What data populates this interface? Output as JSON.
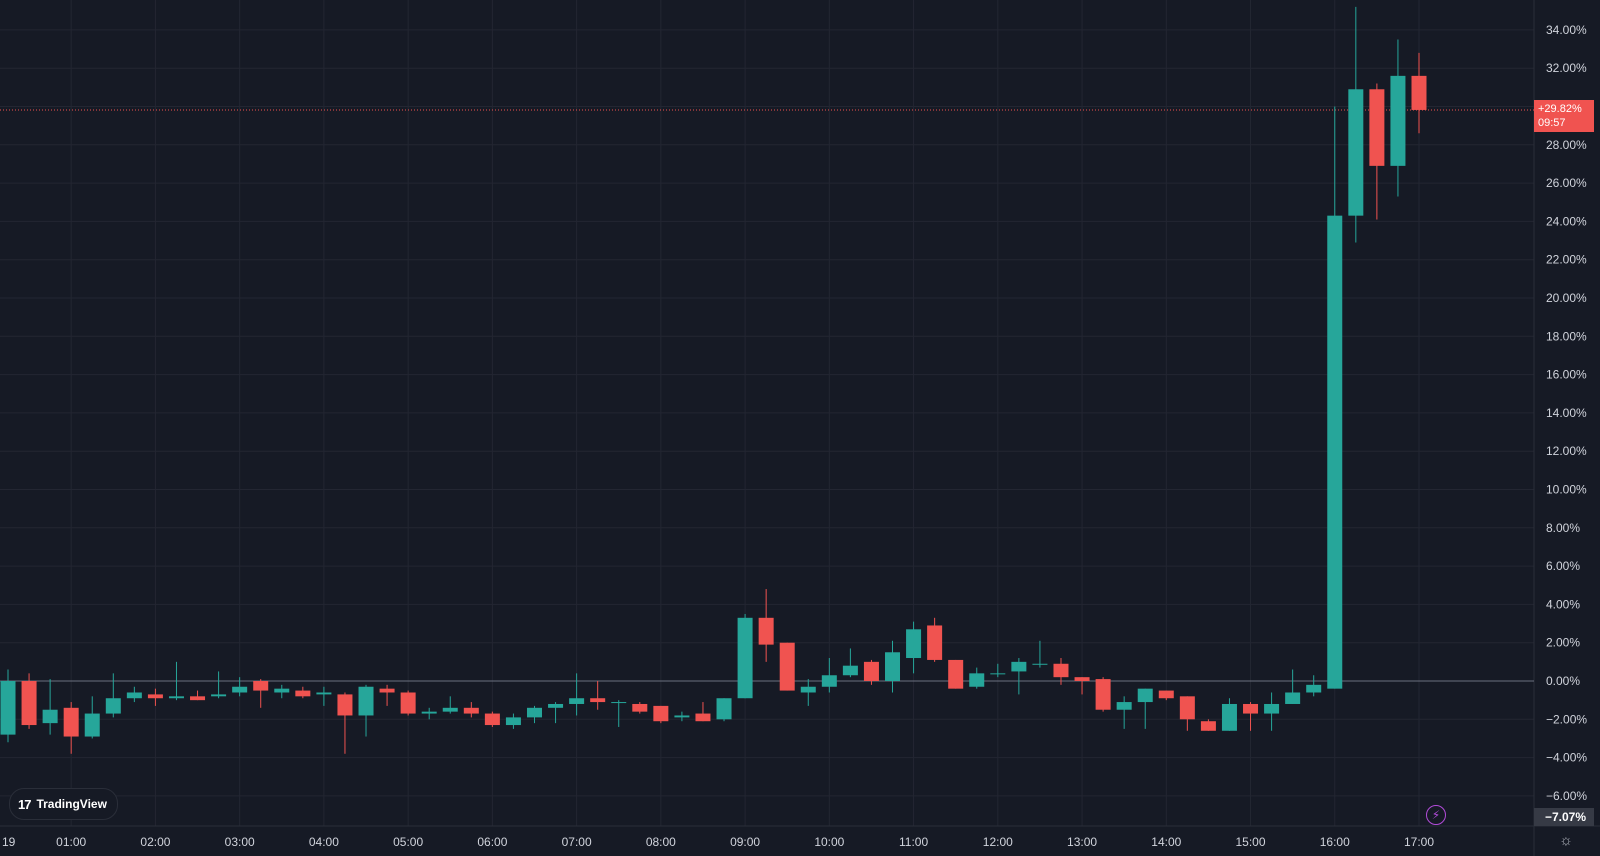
{
  "chart_data": {
    "type": "candlestick",
    "y_axis_unit": "percent",
    "ylim": [
      -7.0,
      35.3
    ],
    "grid": true,
    "x_tick_labels": [
      "19",
      "01:00",
      "02:00",
      "03:00",
      "04:00",
      "05:00",
      "06:00",
      "07:00",
      "08:00",
      "09:00",
      "10:00",
      "11:00",
      "12:00",
      "13:00",
      "14:00",
      "15:00",
      "16:00",
      "17:00"
    ],
    "y_tick_labels": [
      "34.00%",
      "32.00%",
      "30.00%",
      "28.00%",
      "26.00%",
      "24.00%",
      "22.00%",
      "20.00%",
      "18.00%",
      "16.00%",
      "14.00%",
      "12.00%",
      "10.00%",
      "8.00%",
      "6.00%",
      "4.00%",
      "2.00%",
      "0.00%",
      "−2.00%",
      "−4.00%",
      "−6.00%"
    ],
    "y_tick_values": [
      34,
      32,
      30,
      28,
      26,
      24,
      22,
      20,
      18,
      16,
      14,
      12,
      10,
      8,
      6,
      4,
      2,
      0,
      -2,
      -4,
      -6
    ],
    "candles": [
      {
        "time": "00:15",
        "o": -2.8,
        "h": 0.6,
        "l": -3.2,
        "c": 0.0
      },
      {
        "time": "00:30",
        "o": 0.0,
        "h": 0.4,
        "l": -2.5,
        "c": -2.3
      },
      {
        "time": "00:45",
        "o": -2.2,
        "h": 0.1,
        "l": -2.8,
        "c": -1.5
      },
      {
        "time": "01:00",
        "o": -1.4,
        "h": -1.1,
        "l": -3.8,
        "c": -2.9
      },
      {
        "time": "01:15",
        "o": -2.9,
        "h": -0.8,
        "l": -3.0,
        "c": -1.7
      },
      {
        "time": "01:30",
        "o": -1.7,
        "h": 0.4,
        "l": -1.9,
        "c": -0.9
      },
      {
        "time": "01:45",
        "o": -0.9,
        "h": -0.3,
        "l": -1.1,
        "c": -0.6
      },
      {
        "time": "02:00",
        "o": -0.7,
        "h": -0.4,
        "l": -1.3,
        "c": -0.9
      },
      {
        "time": "02:15",
        "o": -0.9,
        "h": 1.0,
        "l": -1.0,
        "c": -0.8
      },
      {
        "time": "02:30",
        "o": -0.8,
        "h": -0.5,
        "l": -1.0,
        "c": -1.0
      },
      {
        "time": "02:45",
        "o": -0.8,
        "h": 0.5,
        "l": -0.9,
        "c": -0.7
      },
      {
        "time": "03:00",
        "o": -0.6,
        "h": 0.2,
        "l": -0.8,
        "c": -0.3
      },
      {
        "time": "03:15",
        "o": 0.0,
        "h": 0.1,
        "l": -1.4,
        "c": -0.5
      },
      {
        "time": "03:30",
        "o": -0.6,
        "h": -0.2,
        "l": -0.9,
        "c": -0.4
      },
      {
        "time": "03:45",
        "o": -0.5,
        "h": -0.3,
        "l": -0.9,
        "c": -0.8
      },
      {
        "time": "04:00",
        "o": -0.7,
        "h": -0.3,
        "l": -1.3,
        "c": -0.6
      },
      {
        "time": "04:15",
        "o": -0.7,
        "h": -0.6,
        "l": -3.8,
        "c": -1.8
      },
      {
        "time": "04:30",
        "o": -1.8,
        "h": -0.2,
        "l": -2.9,
        "c": -0.3
      },
      {
        "time": "04:45",
        "o": -0.4,
        "h": -0.2,
        "l": -1.3,
        "c": -0.6
      },
      {
        "time": "05:00",
        "o": -0.6,
        "h": -0.5,
        "l": -1.8,
        "c": -1.7
      },
      {
        "time": "05:15",
        "o": -1.7,
        "h": -1.4,
        "l": -2.0,
        "c": -1.6
      },
      {
        "time": "05:30",
        "o": -1.6,
        "h": -0.8,
        "l": -1.7,
        "c": -1.4
      },
      {
        "time": "05:45",
        "o": -1.4,
        "h": -1.1,
        "l": -1.9,
        "c": -1.7
      },
      {
        "time": "06:00",
        "o": -1.7,
        "h": -1.6,
        "l": -2.4,
        "c": -2.3
      },
      {
        "time": "06:15",
        "o": -2.3,
        "h": -1.7,
        "l": -2.5,
        "c": -1.9
      },
      {
        "time": "06:30",
        "o": -1.9,
        "h": -1.3,
        "l": -2.2,
        "c": -1.4
      },
      {
        "time": "06:45",
        "o": -1.4,
        "h": -1.1,
        "l": -2.2,
        "c": -1.2
      },
      {
        "time": "07:00",
        "o": -1.2,
        "h": 0.4,
        "l": -1.8,
        "c": -0.9
      },
      {
        "time": "07:15",
        "o": -0.9,
        "h": 0.0,
        "l": -1.5,
        "c": -1.1
      },
      {
        "time": "07:30",
        "o": -1.1,
        "h": -1.0,
        "l": -2.4,
        "c": -1.1
      },
      {
        "time": "07:45",
        "o": -1.2,
        "h": -1.1,
        "l": -1.7,
        "c": -1.6
      },
      {
        "time": "08:00",
        "o": -1.3,
        "h": -1.3,
        "l": -2.2,
        "c": -2.1
      },
      {
        "time": "08:15",
        "o": -1.9,
        "h": -1.6,
        "l": -2.1,
        "c": -1.8
      },
      {
        "time": "08:30",
        "o": -1.7,
        "h": -1.1,
        "l": -2.1,
        "c": -2.1
      },
      {
        "time": "08:45",
        "o": -2.0,
        "h": -0.9,
        "l": -2.1,
        "c": -0.9
      },
      {
        "time": "09:00",
        "o": -0.9,
        "h": 3.5,
        "l": -0.9,
        "c": 3.3
      },
      {
        "time": "09:15",
        "o": 3.3,
        "h": 4.8,
        "l": 1.0,
        "c": 1.9
      },
      {
        "time": "09:30",
        "o": 2.0,
        "h": 2.0,
        "l": -0.5,
        "c": -0.5
      },
      {
        "time": "09:45",
        "o": -0.6,
        "h": 0.1,
        "l": -1.3,
        "c": -0.3
      },
      {
        "time": "10:00",
        "o": -0.3,
        "h": 1.2,
        "l": -0.6,
        "c": 0.3
      },
      {
        "time": "10:15",
        "o": 0.3,
        "h": 1.7,
        "l": 0.2,
        "c": 0.8
      },
      {
        "time": "10:30",
        "o": 1.0,
        "h": 1.1,
        "l": -0.2,
        "c": 0.0
      },
      {
        "time": "10:45",
        "o": 0.0,
        "h": 2.1,
        "l": -0.6,
        "c": 1.5
      },
      {
        "time": "11:00",
        "o": 1.2,
        "h": 3.1,
        "l": 0.4,
        "c": 2.7
      },
      {
        "time": "11:15",
        "o": 2.9,
        "h": 3.3,
        "l": 1.0,
        "c": 1.1
      },
      {
        "time": "11:30",
        "o": 1.1,
        "h": 1.1,
        "l": -0.4,
        "c": -0.4
      },
      {
        "time": "11:45",
        "o": -0.3,
        "h": 0.7,
        "l": -0.4,
        "c": 0.4
      },
      {
        "time": "12:00",
        "o": 0.4,
        "h": 0.9,
        "l": 0.2,
        "c": 0.4
      },
      {
        "time": "12:15",
        "o": 0.5,
        "h": 1.2,
        "l": -0.7,
        "c": 1.0
      },
      {
        "time": "12:30",
        "o": 0.9,
        "h": 2.1,
        "l": 0.7,
        "c": 0.9
      },
      {
        "time": "12:45",
        "o": 0.9,
        "h": 1.2,
        "l": -0.2,
        "c": 0.2
      },
      {
        "time": "13:00",
        "o": 0.2,
        "h": 0.2,
        "l": -0.7,
        "c": 0.0
      },
      {
        "time": "13:15",
        "o": 0.1,
        "h": 0.2,
        "l": -1.6,
        "c": -1.5
      },
      {
        "time": "13:30",
        "o": -1.5,
        "h": -0.8,
        "l": -2.5,
        "c": -1.1
      },
      {
        "time": "13:45",
        "o": -1.1,
        "h": -0.4,
        "l": -2.5,
        "c": -0.4
      },
      {
        "time": "14:00",
        "o": -0.5,
        "h": -0.5,
        "l": -1.0,
        "c": -0.9
      },
      {
        "time": "14:15",
        "o": -0.8,
        "h": -0.8,
        "l": -2.6,
        "c": -2.0
      },
      {
        "time": "14:30",
        "o": -2.1,
        "h": -2.0,
        "l": -2.6,
        "c": -2.6
      },
      {
        "time": "14:45",
        "o": -2.6,
        "h": -0.9,
        "l": -2.6,
        "c": -1.2
      },
      {
        "time": "15:00",
        "o": -1.2,
        "h": -1.1,
        "l": -2.6,
        "c": -1.7
      },
      {
        "time": "15:15",
        "o": -1.7,
        "h": -0.6,
        "l": -2.6,
        "c": -1.2
      },
      {
        "time": "15:30",
        "o": -1.2,
        "h": 0.6,
        "l": -1.2,
        "c": -0.6
      },
      {
        "time": "15:45",
        "o": -0.6,
        "h": 0.3,
        "l": -0.8,
        "c": -0.2
      },
      {
        "time": "16:00",
        "o": -0.4,
        "h": 30.0,
        "l": -0.4,
        "c": 24.3
      },
      {
        "time": "16:15",
        "o": 24.3,
        "h": 35.2,
        "l": 22.9,
        "c": 30.9
      },
      {
        "time": "16:30",
        "o": 30.9,
        "h": 31.2,
        "l": 24.1,
        "c": 26.9
      },
      {
        "time": "16:45",
        "o": 26.9,
        "h": 33.5,
        "l": 25.3,
        "c": 31.6
      },
      {
        "time": "17:00",
        "o": 31.6,
        "h": 32.8,
        "l": 28.6,
        "c": 29.82
      }
    ],
    "current_value": 29.82,
    "current_label": "+29.82%",
    "countdown_label": "09:57",
    "low_label": "−7.07%",
    "colors": {
      "background": "#161a25",
      "grid": "#232632",
      "up": "#26a69a",
      "down": "#f05350",
      "axis_text": "#d1d4dc",
      "baseline": "#6b7080",
      "price_line": "#f05350"
    }
  },
  "branding": {
    "logo_text": "TradingView",
    "logo_mark": "17"
  },
  "icons": {
    "bolt": "lightning-icon",
    "settings": "settings-icon"
  }
}
